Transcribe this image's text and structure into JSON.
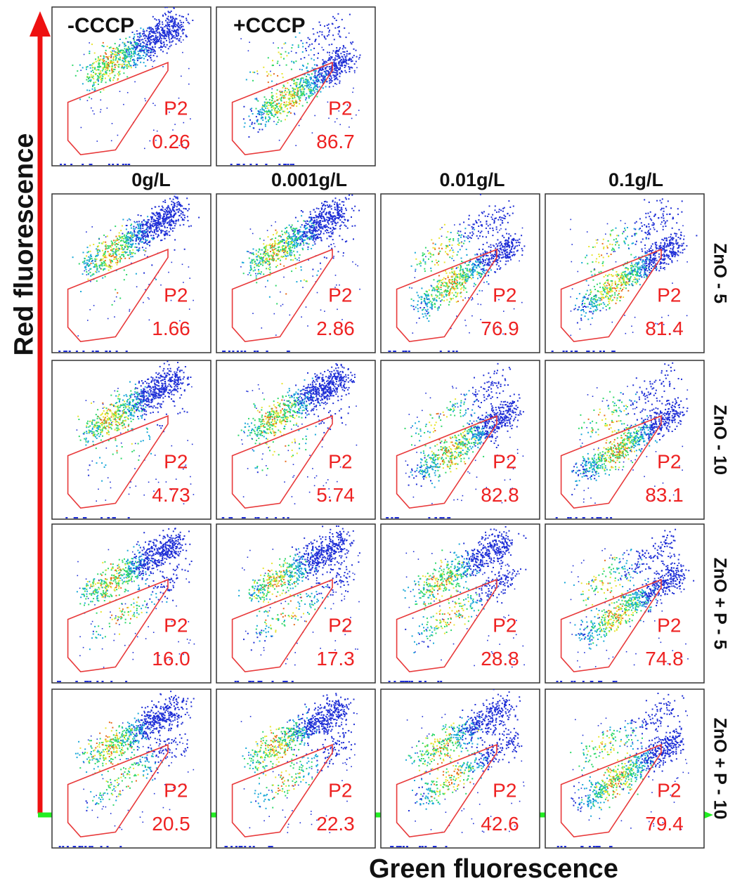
{
  "chart_data": {
    "type": "scatter",
    "title": "",
    "xlabel": "Green fluorescence",
    "ylabel": "Red fluorescence",
    "gate_name": "P2",
    "controls": [
      {
        "label": "-CCCP",
        "gate_percent": "0.26"
      },
      {
        "label": "+CCCP",
        "gate_percent": "86.7"
      }
    ],
    "columns": [
      "0g/L",
      "0.001g/L",
      "0.01g/L",
      "0.1g/L"
    ],
    "rows": [
      {
        "label": "ZnO - 5",
        "gate_percents": [
          "1.66",
          "2.86",
          "76.9",
          "81.4"
        ]
      },
      {
        "label": "ZnO - 10",
        "gate_percents": [
          "4.73",
          "5.74",
          "82.8",
          "83.1"
        ]
      },
      {
        "label": "ZnO + P - 5",
        "gate_percents": [
          "16.0",
          "17.3",
          "28.8",
          "74.8"
        ]
      },
      {
        "label": "ZnO + P - 10",
        "gate_percents": [
          "20.5",
          "22.3",
          "42.6",
          "79.4"
        ]
      }
    ]
  },
  "colors": {
    "gate": "#e8393a",
    "gate_text": "#ee2222",
    "x_axis": "#22ee22",
    "y_axis": "#ee1111",
    "density_low": "#1f2fd6",
    "density_mid1": "#18a7d8",
    "density_mid2": "#2fd86a",
    "density_mid3": "#e8e430",
    "density_high": "#e86a1a"
  }
}
